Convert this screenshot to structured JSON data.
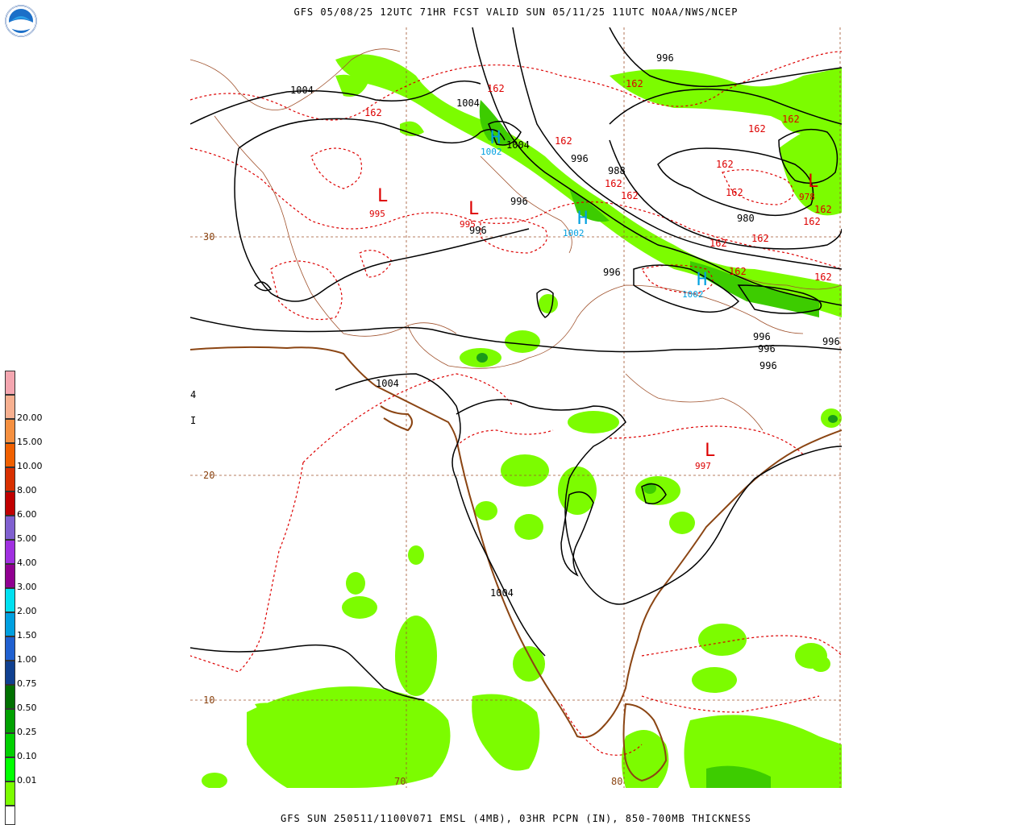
{
  "header": {
    "title": "GFS 05/08/25 12UTC 71HR FCST VALID SUN 05/11/25 11UTC NOAA/NWS/NCEP",
    "logo_icon": "noaa-logo"
  },
  "footer": {
    "title": "GFS SUN 250511/1100V071 EMSL (4MB), 03HR PCPN (IN), 850-700MB THICKNESS"
  },
  "map": {
    "lat_labels": [
      "30",
      "20",
      "10"
    ],
    "lon_labels": [
      "70",
      "80"
    ],
    "side_marks": [
      "4",
      "I"
    ],
    "colors": {
      "isobar": "#000000",
      "thickness": "#dd0000",
      "coastline": "#8b4513",
      "border": "#a0522d",
      "grid": "#a0522d",
      "high": "#00a0e0",
      "low": "#dd0000",
      "precip_light": "#7cfc00",
      "precip_mid": "#3dcc00",
      "precip_heavy": "#1a9a1a"
    },
    "isobar_labels": [
      "1004",
      "1004",
      "1004",
      "996",
      "996",
      "996",
      "988",
      "980",
      "996",
      "996",
      "996",
      "996",
      "996",
      "1004",
      "1004",
      "996"
    ],
    "thickness_labels": [
      "162",
      "162",
      "162",
      "162",
      "162",
      "162",
      "162",
      "162",
      "162",
      "162",
      "162",
      "162",
      "162",
      "162",
      "162",
      "162"
    ],
    "lows": [
      {
        "symbol": "L",
        "value": "995"
      },
      {
        "symbol": "L",
        "value": "995"
      },
      {
        "symbol": "L",
        "value": "978"
      },
      {
        "symbol": "L",
        "value": "997"
      }
    ],
    "highs": [
      {
        "symbol": "H",
        "value": "1002"
      },
      {
        "symbol": "H",
        "value": "1002"
      },
      {
        "symbol": "H",
        "value": "1002"
      }
    ]
  },
  "legend": {
    "title": "03HR PCPN (IN)",
    "items": [
      {
        "label": "",
        "color": "#f4a6b0"
      },
      {
        "label": "20.00",
        "color": "#f7b090"
      },
      {
        "label": "15.00",
        "color": "#f59040"
      },
      {
        "label": "10.00",
        "color": "#f06000"
      },
      {
        "label": "8.00",
        "color": "#d83000"
      },
      {
        "label": "6.00",
        "color": "#c00000"
      },
      {
        "label": "5.00",
        "color": "#8060d0"
      },
      {
        "label": "4.00",
        "color": "#a030e0"
      },
      {
        "label": "3.00",
        "color": "#900090"
      },
      {
        "label": "2.00",
        "color": "#00e0f0"
      },
      {
        "label": "1.50",
        "color": "#00a0e0"
      },
      {
        "label": "1.00",
        "color": "#2060d0"
      },
      {
        "label": "0.75",
        "color": "#104090"
      },
      {
        "label": "0.50",
        "color": "#007000"
      },
      {
        "label": "0.25",
        "color": "#00a000"
      },
      {
        "label": "0.10",
        "color": "#00d000"
      },
      {
        "label": "0.01",
        "color": "#00ff00"
      },
      {
        "label": "",
        "color": "#7cfc00"
      },
      {
        "label": "",
        "color": "#ffffff"
      }
    ]
  }
}
